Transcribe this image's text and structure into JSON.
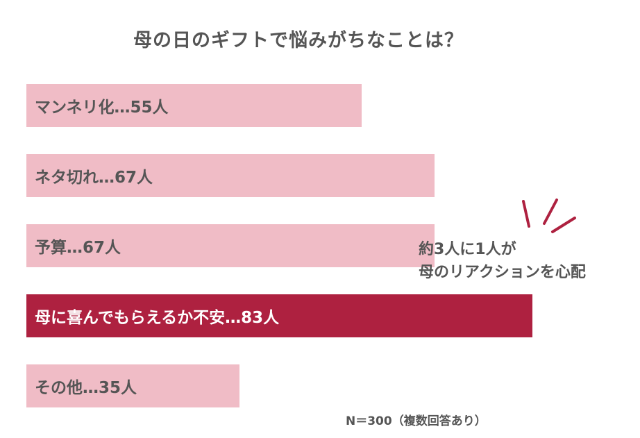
{
  "chart_data": {
    "type": "bar",
    "orientation": "horizontal",
    "title": "母の日のギフトで悩みがちなことは？",
    "categories": [
      "マンネリ化",
      "ネタ切れ",
      "予算",
      "母に喜んでもらえるか不安",
      "その他"
    ],
    "values": [
      55,
      67,
      67,
      83,
      35
    ],
    "labels": [
      "マンネリ化…55人",
      "ネタ切れ…67人",
      "予算…67人",
      "母に喜んでもらえるか不安…83人",
      "その他…35人"
    ],
    "highlight_index": 3,
    "xlim": [
      0,
      100
    ],
    "grid": false,
    "colors": {
      "bar": "#f0bcc6",
      "highlight": "#ae2140",
      "label": "#555555",
      "highlight_label": "#ffffff",
      "accent_mark": "#ae2140"
    }
  },
  "callout": {
    "line1": "約3人に1人が",
    "line2": "母のリアクションを心配"
  },
  "note": "N＝300（複数回答あり）"
}
